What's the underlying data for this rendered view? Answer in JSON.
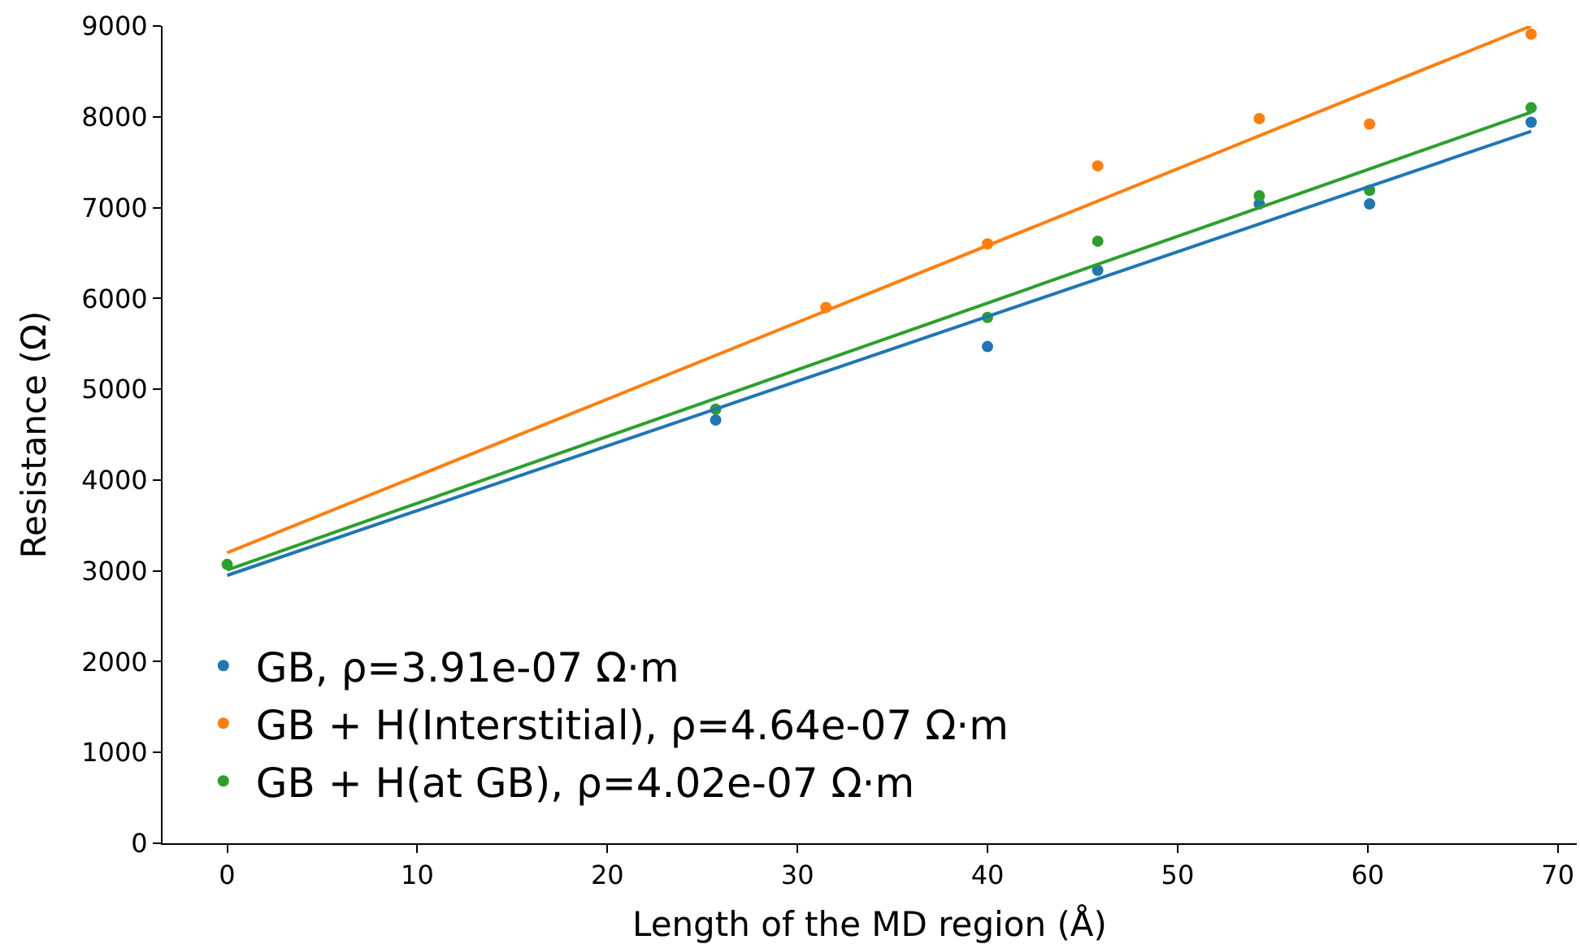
{
  "chart_data": {
    "type": "scatter",
    "xlabel": "Length of the MD region (Å)",
    "ylabel": "Resistance (Ω)",
    "xlim": [
      -3.4,
      71
    ],
    "xticks": [
      0,
      10,
      20,
      30,
      40,
      50,
      60,
      70
    ],
    "ylim": [
      0,
      9000
    ],
    "yticks": [
      0,
      1000,
      2000,
      3000,
      4000,
      5000,
      6000,
      7000,
      8000,
      9000
    ],
    "legend": "bottom left",
    "series": [
      {
        "name": "GB, ρ=3.91e-07 Ω·m",
        "marker": "circle",
        "color": "#1f77b4",
        "x": [
          25.7,
          40,
          45.8,
          54.3,
          60.1,
          68.6
        ],
        "values": [
          4660,
          5470,
          6310,
          7040,
          7040,
          7940
        ]
      },
      {
        "name": "GB + H(Interstitial), ρ=4.64e-07 Ω·m",
        "marker": "circle",
        "color": "#ff7f0e",
        "x": [
          31.5,
          40,
          45.8,
          54.3,
          60.1,
          68.6
        ],
        "values": [
          5900,
          6600,
          7460,
          7980,
          7920,
          8910
        ]
      },
      {
        "name": "GB + H(at GB), ρ=4.02e-07 Ω·m",
        "marker": "circle",
        "color": "#2ca02c",
        "x": [
          0,
          25.7,
          40,
          45.8,
          54.3,
          60.1,
          68.6
        ],
        "values": [
          3070,
          4780,
          5790,
          6630,
          7130,
          7190,
          8100
        ]
      },
      {
        "type": "line",
        "color": "#1f77b4",
        "x": [
          0,
          68.6
        ],
        "values": [
          2950,
          7840
        ],
        "marker": "none"
      },
      {
        "type": "line",
        "color": "#ff7f0e",
        "x": [
          0,
          68.6
        ],
        "values": [
          3200,
          9000
        ],
        "marker": "none"
      },
      {
        "type": "line",
        "color": "#2ca02c",
        "x": [
          0,
          68.6
        ],
        "values": [
          3010,
          8050
        ],
        "marker": "none"
      }
    ]
  }
}
